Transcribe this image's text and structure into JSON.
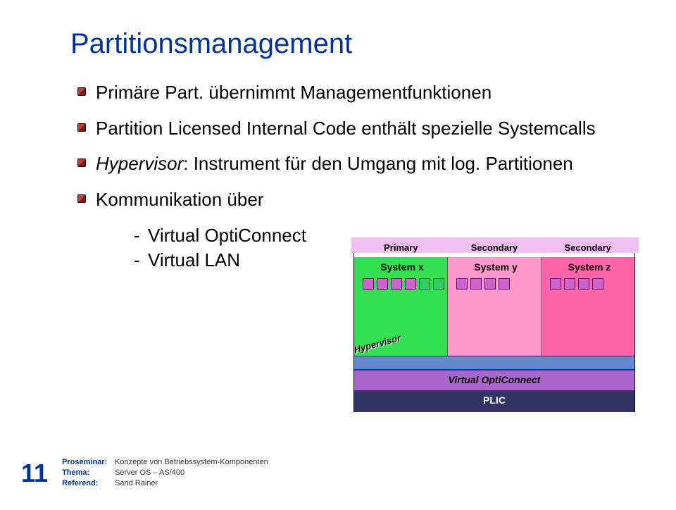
{
  "title": "Partitionsmanagement",
  "bullets": {
    "b1": {
      "text": "Primäre Part. übernimmt Managementfunktionen",
      "color": "#c04040"
    },
    "b2": {
      "text": "Partition Licensed Internal Code enthält spezielle Systemcalls",
      "color": "#c04040"
    },
    "b3": {
      "prefix": "Hypervisor",
      "text": ": Instrument für den Umgang mit log. Partitionen",
      "color": "#c04040"
    },
    "b4": {
      "text": "Kommunikation über",
      "color": "#c04040"
    }
  },
  "subitems": {
    "s1": "Virtual OptiConnect",
    "s2": "Virtual LAN"
  },
  "diagram": {
    "topband_color": "#f0c0f0",
    "labels": {
      "l1": "Primary",
      "l2": "Secondary",
      "l3": "Secondary"
    },
    "panels": {
      "p1": {
        "title": "System x",
        "bg": "#33e050",
        "icons": [
          "mag",
          "mag",
          "mag",
          "mag",
          "grn",
          "grn"
        ]
      },
      "p2": {
        "title": "System y",
        "bg": "#ff99cc",
        "icons": [
          "mag",
          "mag",
          "mag",
          "mag"
        ]
      },
      "p3": {
        "title": "System z",
        "bg": "#ff66aa",
        "icons": [
          "mag",
          "mag",
          "mag",
          "mag"
        ]
      }
    },
    "hypervisor": {
      "label": "Hypervisor",
      "bg": "#6688cc"
    },
    "voc": {
      "label": "Virtual OptiConnect",
      "bg": "#aa66cc"
    },
    "plic": {
      "label": "PLIC",
      "bg": "#333366",
      "fg": "#ffffff"
    }
  },
  "footer": {
    "page": "11",
    "rows": {
      "r1k": "Proseminar:",
      "r1v": "Konzepte von Betriebssystem-Komponenten",
      "r2k": "Thema:",
      "r2v": "Server OS – AS/400",
      "r3k": "Referend:",
      "r3v": "Sand Rainer"
    }
  },
  "colors": {
    "title": "#003399",
    "text": "#000000",
    "meta_key": "#003399",
    "meta_val": "#333333",
    "page_bg": "#ffffff"
  },
  "typography": {
    "title_fontsize": 40,
    "bullet_fontsize": 26,
    "meta_fontsize": 11,
    "pagenum_fontsize": 36,
    "font_family": "Arial"
  }
}
